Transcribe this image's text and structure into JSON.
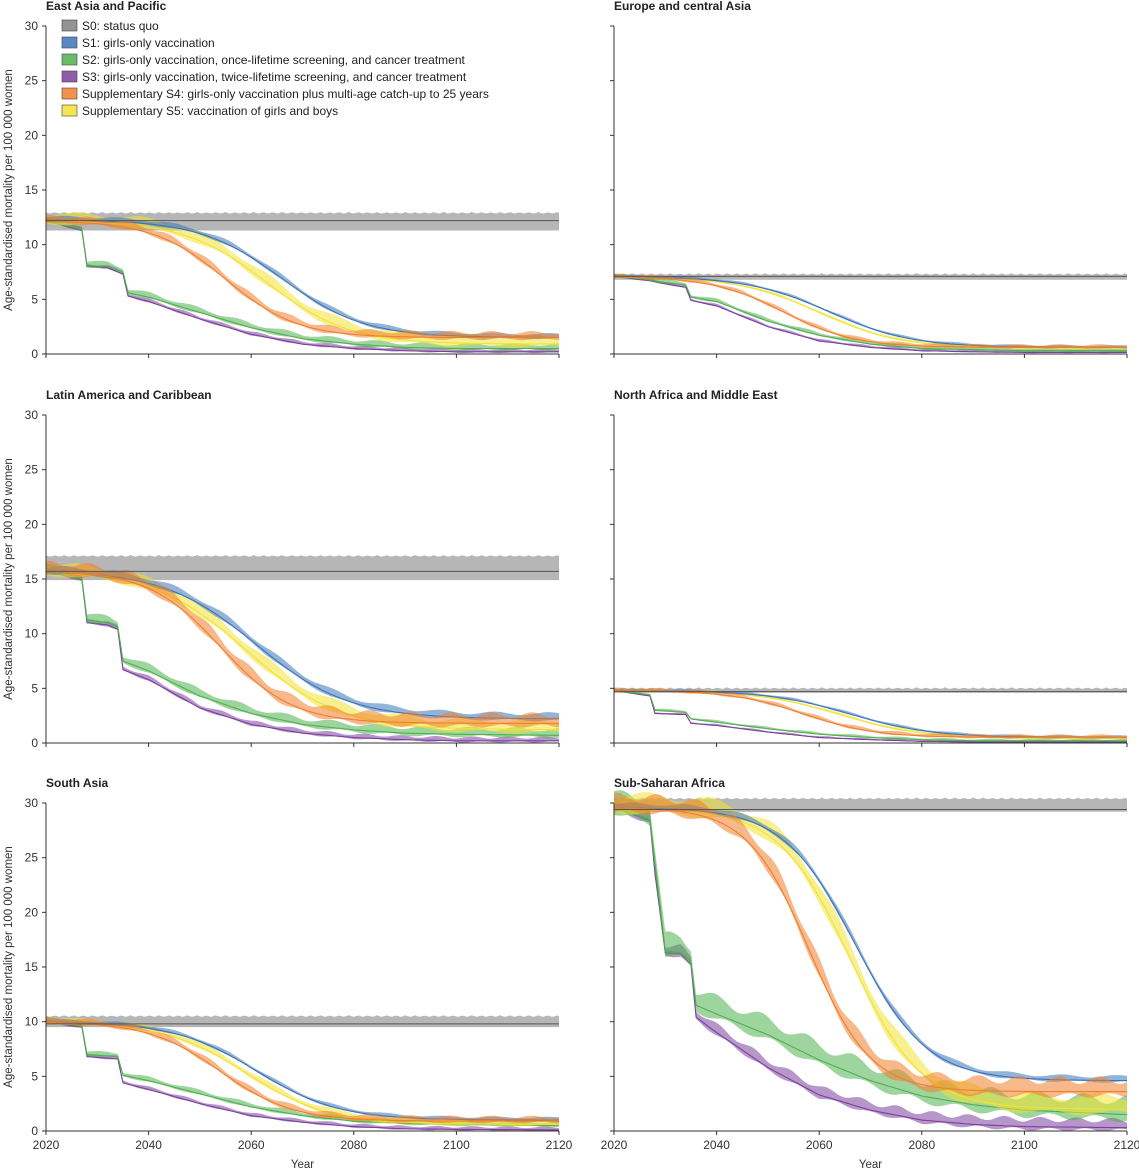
{
  "chart_data": {
    "type": "area",
    "xlabel": "Year",
    "ylabel": "Age-standardised mortality per 100 000 women",
    "x_ticks": [
      2020,
      2040,
      2060,
      2080,
      2100,
      2120
    ],
    "y_ticks": [
      0,
      5,
      10,
      15,
      20,
      25,
      30
    ],
    "xlim": [
      2020,
      2120
    ],
    "ylim": [
      0,
      30
    ],
    "legend": [
      {
        "key": "S0",
        "label": "S0: status quo",
        "color": "#7f7f7f"
      },
      {
        "key": "S1",
        "label": "S1: girls-only vaccination",
        "color": "#3a74b8"
      },
      {
        "key": "S2",
        "label": "S2: girls-only vaccination, once-lifetime screening, and cancer treatment",
        "color": "#4fb04d"
      },
      {
        "key": "S3",
        "label": "S3: girls-only vaccination, twice-lifetime screening, and cancer treatment",
        "color": "#7b3f9e"
      },
      {
        "key": "S4",
        "label": "Supplementary S4: girls-only vaccination plus multi-age catch-up to 25 years",
        "color": "#f07f2b"
      },
      {
        "key": "S5",
        "label": "Supplementary S5: vaccination of girls and boys",
        "color": "#f2e233"
      }
    ],
    "panels": [
      {
        "title": "East Asia and Pacific",
        "base": 12.2,
        "s0_band": [
          11.3,
          13.0
        ],
        "series": {
          "S1": {
            "start": 12.3,
            "end": 1.5,
            "mid": 2066,
            "width": 8,
            "band": 0.4
          },
          "S5": {
            "start": 12.2,
            "end": 0.9,
            "mid": 2063,
            "width": 8,
            "band": 0.9
          },
          "S4": {
            "start": 12.2,
            "end": 1.5,
            "mid": 2055,
            "width": 7,
            "band": 0.6
          },
          "S2": {
            "points": [
              [
                2020,
                12.2
              ],
              [
                2027,
                11.4
              ],
              [
                2028,
                8.1
              ],
              [
                2032,
                8.0
              ],
              [
                2035,
                7.5
              ],
              [
                2036,
                5.6
              ],
              [
                2040,
                5.2
              ],
              [
                2050,
                3.8
              ],
              [
                2060,
                2.4
              ],
              [
                2070,
                1.4
              ],
              [
                2080,
                0.9
              ],
              [
                2090,
                0.6
              ],
              [
                2100,
                0.5
              ],
              [
                2120,
                0.5
              ]
            ],
            "band": 0.5
          },
          "S3": {
            "points": [
              [
                2020,
                12.2
              ],
              [
                2027,
                11.3
              ],
              [
                2028,
                8.0
              ],
              [
                2032,
                7.9
              ],
              [
                2035,
                7.3
              ],
              [
                2036,
                5.3
              ],
              [
                2040,
                4.8
              ],
              [
                2050,
                3.2
              ],
              [
                2060,
                1.8
              ],
              [
                2070,
                0.9
              ],
              [
                2080,
                0.5
              ],
              [
                2090,
                0.3
              ],
              [
                2100,
                0.2
              ],
              [
                2120,
                0.2
              ]
            ],
            "band": 0.3
          }
        }
      },
      {
        "title": "Europe and central Asia",
        "base": 7.1,
        "s0_band": [
          6.8,
          7.4
        ],
        "series": {
          "S1": {
            "start": 7.1,
            "end": 0.6,
            "mid": 2062,
            "width": 8,
            "band": 0.2
          },
          "S5": {
            "start": 7.1,
            "end": 0.5,
            "mid": 2060,
            "width": 8,
            "band": 0.2
          },
          "S4": {
            "start": 7.1,
            "end": 0.6,
            "mid": 2053,
            "width": 7,
            "band": 0.3
          },
          "S2": {
            "points": [
              [
                2020,
                7.1
              ],
              [
                2027,
                6.8
              ],
              [
                2029,
                6.6
              ],
              [
                2034,
                6.3
              ],
              [
                2035,
                5.2
              ],
              [
                2040,
                4.8
              ],
              [
                2050,
                3.0
              ],
              [
                2060,
                1.7
              ],
              [
                2070,
                0.9
              ],
              [
                2080,
                0.5
              ],
              [
                2090,
                0.4
              ],
              [
                2100,
                0.3
              ],
              [
                2120,
                0.3
              ]
            ],
            "band": 0.3
          },
          "S3": {
            "points": [
              [
                2020,
                7.1
              ],
              [
                2027,
                6.7
              ],
              [
                2029,
                6.5
              ],
              [
                2034,
                6.1
              ],
              [
                2035,
                4.9
              ],
              [
                2040,
                4.4
              ],
              [
                2050,
                2.5
              ],
              [
                2060,
                1.2
              ],
              [
                2070,
                0.6
              ],
              [
                2080,
                0.3
              ],
              [
                2090,
                0.2
              ],
              [
                2100,
                0.15
              ],
              [
                2120,
                0.15
              ]
            ],
            "band": 0.2
          }
        }
      },
      {
        "title": "Latin America and Caribbean",
        "base": 15.7,
        "s0_band": [
          14.9,
          17.2
        ],
        "series": {
          "S1": {
            "start": 15.8,
            "end": 2.2,
            "mid": 2061,
            "width": 9,
            "band": 0.6
          },
          "S5": {
            "start": 15.8,
            "end": 1.2,
            "mid": 2059,
            "width": 9,
            "band": 1.0
          },
          "S4": {
            "start": 15.8,
            "end": 1.8,
            "mid": 2054,
            "width": 7,
            "band": 1.0
          },
          "S2": {
            "points": [
              [
                2020,
                15.8
              ],
              [
                2027,
                15.0
              ],
              [
                2028,
                11.3
              ],
              [
                2032,
                11.0
              ],
              [
                2034,
                10.6
              ],
              [
                2035,
                7.5
              ],
              [
                2040,
                6.6
              ],
              [
                2050,
                4.3
              ],
              [
                2060,
                2.7
              ],
              [
                2070,
                1.7
              ],
              [
                2080,
                1.2
              ],
              [
                2090,
                0.9
              ],
              [
                2100,
                0.8
              ],
              [
                2120,
                0.7
              ]
            ],
            "band": 0.7
          },
          "S3": {
            "points": [
              [
                2020,
                15.8
              ],
              [
                2027,
                14.9
              ],
              [
                2028,
                11.0
              ],
              [
                2032,
                10.8
              ],
              [
                2034,
                10.4
              ],
              [
                2035,
                6.7
              ],
              [
                2040,
                5.8
              ],
              [
                2050,
                3.2
              ],
              [
                2060,
                1.7
              ],
              [
                2070,
                0.9
              ],
              [
                2080,
                0.5
              ],
              [
                2090,
                0.3
              ],
              [
                2100,
                0.2
              ],
              [
                2120,
                0.2
              ]
            ],
            "band": 0.4
          }
        }
      },
      {
        "title": "North Africa and Middle East",
        "base": 4.7,
        "s0_band": [
          4.6,
          5.1
        ],
        "series": {
          "S1": {
            "start": 4.8,
            "end": 0.5,
            "mid": 2066,
            "width": 8,
            "band": 0.2
          },
          "S5": {
            "start": 4.8,
            "end": 0.4,
            "mid": 2064,
            "width": 8,
            "band": 0.2
          },
          "S4": {
            "start": 4.8,
            "end": 0.5,
            "mid": 2057,
            "width": 7,
            "band": 0.3
          },
          "S2": {
            "points": [
              [
                2020,
                4.8
              ],
              [
                2027,
                4.4
              ],
              [
                2028,
                3.0
              ],
              [
                2034,
                2.8
              ],
              [
                2035,
                2.2
              ],
              [
                2040,
                1.9
              ],
              [
                2050,
                1.3
              ],
              [
                2060,
                0.8
              ],
              [
                2070,
                0.5
              ],
              [
                2080,
                0.3
              ],
              [
                2090,
                0.2
              ],
              [
                2120,
                0.2
              ]
            ],
            "band": 0.2
          },
          "S3": {
            "points": [
              [
                2020,
                4.8
              ],
              [
                2027,
                4.3
              ],
              [
                2028,
                2.7
              ],
              [
                2034,
                2.6
              ],
              [
                2035,
                1.8
              ],
              [
                2040,
                1.6
              ],
              [
                2050,
                1.0
              ],
              [
                2060,
                0.5
              ],
              [
                2070,
                0.3
              ],
              [
                2080,
                0.15
              ],
              [
                2090,
                0.1
              ],
              [
                2120,
                0.1
              ]
            ],
            "band": 0.15
          }
        }
      },
      {
        "title": "South Asia",
        "base": 9.8,
        "s0_band": [
          9.5,
          10.6
        ],
        "series": {
          "S1": {
            "start": 10.0,
            "end": 1.0,
            "mid": 2061,
            "width": 8,
            "band": 0.3
          },
          "S5": {
            "start": 10.0,
            "end": 0.6,
            "mid": 2059,
            "width": 8,
            "band": 0.5
          },
          "S4": {
            "start": 10.0,
            "end": 0.9,
            "mid": 2054,
            "width": 7,
            "band": 0.5
          },
          "S2": {
            "points": [
              [
                2020,
                10.0
              ],
              [
                2027,
                9.6
              ],
              [
                2028,
                7.0
              ],
              [
                2034,
                6.8
              ],
              [
                2035,
                5.1
              ],
              [
                2040,
                4.6
              ],
              [
                2050,
                3.4
              ],
              [
                2060,
                2.2
              ],
              [
                2070,
                1.4
              ],
              [
                2080,
                0.9
              ],
              [
                2090,
                0.7
              ],
              [
                2100,
                0.6
              ],
              [
                2120,
                0.5
              ]
            ],
            "band": 0.4
          },
          "S3": {
            "points": [
              [
                2020,
                10.0
              ],
              [
                2027,
                9.5
              ],
              [
                2028,
                6.8
              ],
              [
                2034,
                6.6
              ],
              [
                2035,
                4.4
              ],
              [
                2040,
                3.8
              ],
              [
                2050,
                2.5
              ],
              [
                2060,
                1.4
              ],
              [
                2070,
                0.8
              ],
              [
                2080,
                0.4
              ],
              [
                2090,
                0.2
              ],
              [
                2100,
                0.15
              ],
              [
                2120,
                0.1
              ]
            ],
            "band": 0.3
          }
        }
      },
      {
        "title": "Sub-Saharan Africa",
        "base": 29.4,
        "s0_band": [
          29.2,
          30.5
        ],
        "series": {
          "S1": {
            "start": 29.6,
            "end": 4.6,
            "mid": 2067,
            "width": 7,
            "band": 0.5
          },
          "S5": {
            "start": 29.6,
            "end": 2.0,
            "mid": 2066,
            "width": 7,
            "band": 1.5
          },
          "S4": {
            "start": 29.6,
            "end": 3.6,
            "mid": 2058,
            "width": 6,
            "band": 1.4
          },
          "S2": {
            "points": [
              [
                2020,
                29.6
              ],
              [
                2027,
                28.5
              ],
              [
                2028,
                24.5
              ],
              [
                2030,
                16.5
              ],
              [
                2033,
                16.3
              ],
              [
                2035,
                15.5
              ],
              [
                2036,
                11.5
              ],
              [
                2040,
                10.7
              ],
              [
                2050,
                8.8
              ],
              [
                2060,
                6.5
              ],
              [
                2070,
                4.6
              ],
              [
                2080,
                3.2
              ],
              [
                2090,
                2.4
              ],
              [
                2100,
                1.9
              ],
              [
                2110,
                1.7
              ],
              [
                2120,
                1.5
              ]
            ],
            "band": 1.8
          },
          "S3": {
            "points": [
              [
                2020,
                29.6
              ],
              [
                2027,
                28.4
              ],
              [
                2028,
                23.5
              ],
              [
                2030,
                16.3
              ],
              [
                2033,
                16.2
              ],
              [
                2035,
                15.2
              ],
              [
                2036,
                10.4
              ],
              [
                2040,
                9.0
              ],
              [
                2050,
                5.8
              ],
              [
                2060,
                3.3
              ],
              [
                2070,
                1.9
              ],
              [
                2080,
                1.0
              ],
              [
                2090,
                0.6
              ],
              [
                2100,
                0.4
              ],
              [
                2110,
                0.35
              ],
              [
                2120,
                0.3
              ]
            ],
            "band": 0.9
          }
        }
      }
    ]
  }
}
